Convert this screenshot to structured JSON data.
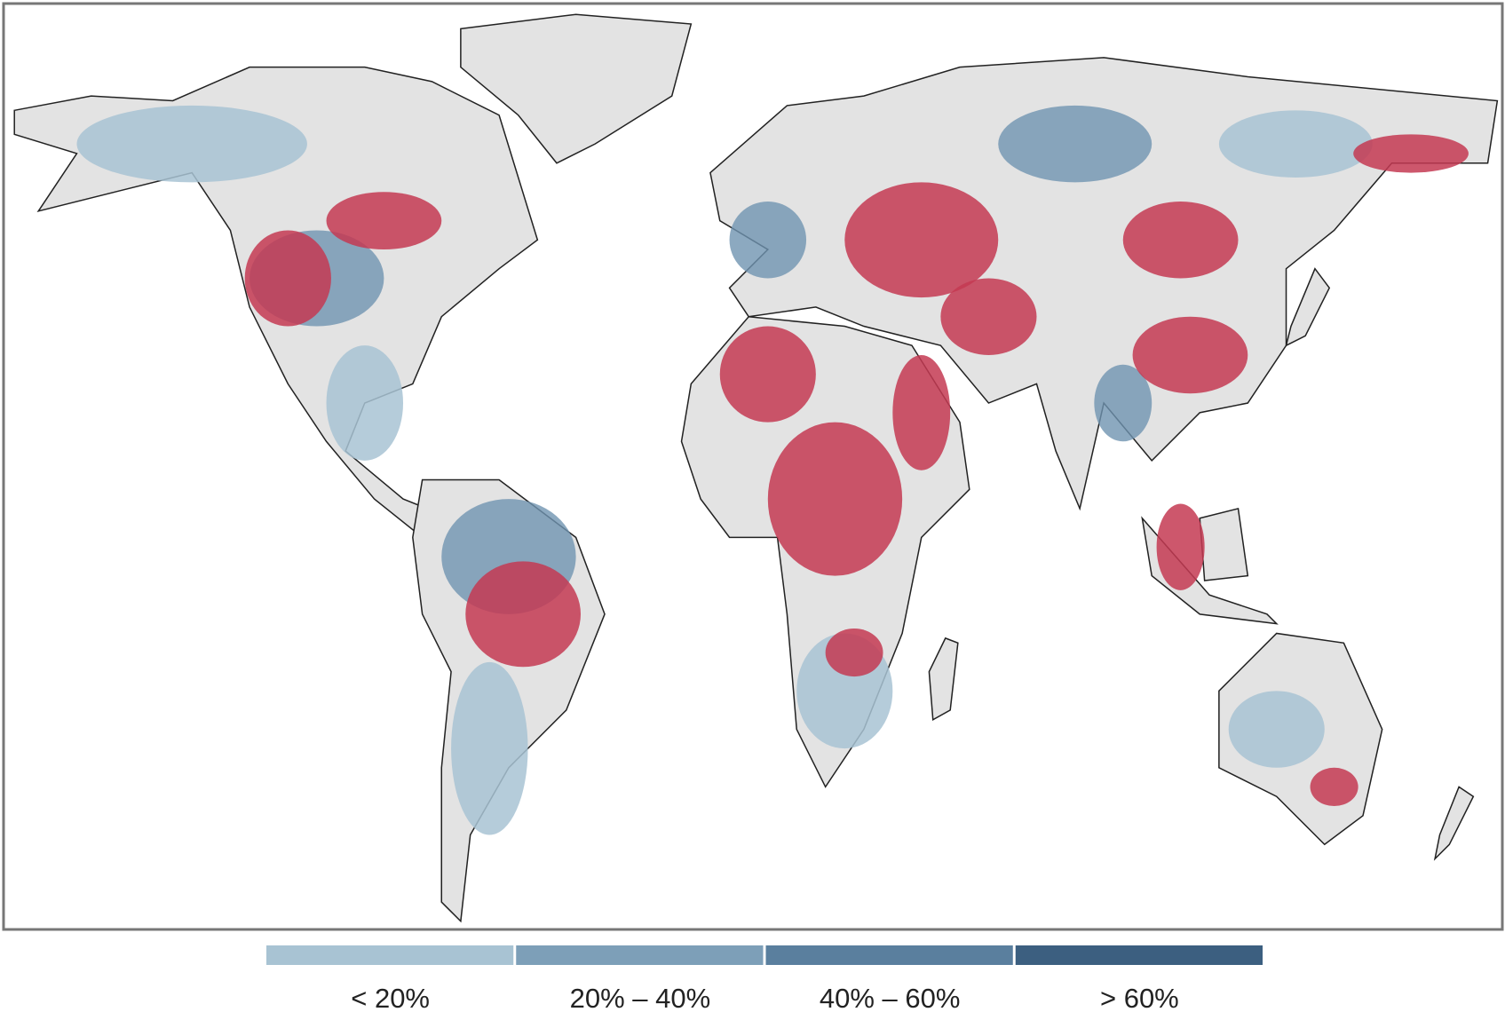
{
  "legend": {
    "items": [
      {
        "label": "< 20%",
        "color": "#a8c3d3"
      },
      {
        "label": "20% – 40%",
        "color": "#7d9fb8"
      },
      {
        "label": "40% – 60%",
        "color": "#5a7f9e"
      },
      {
        "label": "> 60%",
        "color": "#3c5f80"
      }
    ]
  }
}
